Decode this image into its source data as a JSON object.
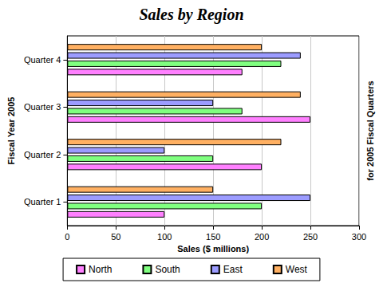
{
  "chart_data": {
    "type": "bar",
    "orientation": "horizontal",
    "title": "Sales by Region",
    "x_label": "Sales ($ millions)",
    "y_label": "Fiscal Year 2005",
    "y2_label": "for 2005 Fiscal Quarters",
    "categories": [
      "Quarter 1",
      "Quarter 2",
      "Quarter 3",
      "Quarter 4"
    ],
    "series": [
      {
        "name": "North",
        "color": "#ff80ff",
        "values": [
          100,
          200,
          250,
          180
        ]
      },
      {
        "name": "South",
        "color": "#80ff80",
        "values": [
          200,
          150,
          180,
          220
        ]
      },
      {
        "name": "East",
        "color": "#9c9cff",
        "values": [
          250,
          100,
          150,
          240
        ]
      },
      {
        "name": "West",
        "color": "#ffb062",
        "values": [
          150,
          220,
          240,
          200
        ]
      }
    ],
    "xlim": [
      0,
      300
    ],
    "xticks": [
      0,
      50,
      100,
      150,
      200,
      250,
      300
    ],
    "grid": true,
    "legend": "bottom"
  }
}
